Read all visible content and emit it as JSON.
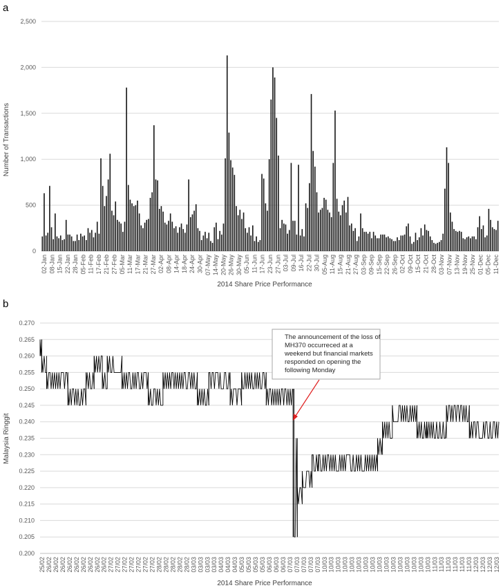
{
  "panels": {
    "a_label": "a",
    "b_label": "b"
  },
  "chart_data": [
    {
      "type": "bar",
      "panel": "a",
      "title": "",
      "xlabel": "2014 Share Price Performance",
      "ylabel": "Number of Transactions",
      "ylim": [
        0,
        2500
      ],
      "yticks": [
        0,
        500,
        1000,
        1500,
        2000,
        2500
      ],
      "ytick_labels": [
        "0",
        "500",
        "1,000",
        "1,500",
        "2,000",
        "2,500"
      ],
      "grid": true,
      "color": "#1a1a1a",
      "x_tick_labels": [
        "02-Jan",
        "08-Jan",
        "15-Jan",
        "22-Jan",
        "28-Jan",
        "05-Feb",
        "11-Feb",
        "17-Feb",
        "21-Feb",
        "27-Feb",
        "05-Mar",
        "11-Mar",
        "17-Mar",
        "21-Mar",
        "27-Mar",
        "02-Apr",
        "08-Apr",
        "14-Apr",
        "18-Apr",
        "24-Apr",
        "30-Apr",
        "07-May",
        "14-May",
        "20-May",
        "26-May",
        "30-May",
        "05-Jun",
        "11-Jun",
        "17-Jun",
        "23-Jun",
        "27-Jun",
        "03-Jul",
        "09-Jul",
        "16-Jul",
        "22-Jul",
        "30-Jul",
        "05-Aug",
        "11-Aug",
        "15-Aug",
        "21-Aug",
        "27-Aug",
        "03-Sep",
        "09-Sep",
        "15-Sep",
        "22-Sep",
        "26-Sep",
        "02-Oct",
        "09-Oct",
        "15-Oct",
        "21-Oct",
        "28-Oct",
        "03-Nov",
        "07-Nov",
        "13-Nov",
        "19-Nov",
        "25-Nov",
        "01-Dec",
        "05-Dec",
        "11-Dec"
      ],
      "values": [
        160,
        630,
        170,
        200,
        710,
        260,
        130,
        410,
        160,
        140,
        170,
        120,
        130,
        340,
        180,
        180,
        160,
        110,
        110,
        180,
        120,
        190,
        160,
        170,
        120,
        250,
        200,
        230,
        150,
        200,
        320,
        190,
        1010,
        710,
        490,
        600,
        780,
        1060,
        440,
        390,
        540,
        340,
        320,
        300,
        210,
        320,
        1780,
        720,
        560,
        520,
        490,
        500,
        550,
        410,
        280,
        250,
        310,
        340,
        350,
        580,
        640,
        1370,
        780,
        770,
        460,
        490,
        430,
        310,
        290,
        330,
        410,
        320,
        250,
        270,
        200,
        260,
        300,
        240,
        200,
        290,
        780,
        370,
        400,
        440,
        510,
        250,
        220,
        120,
        170,
        210,
        140,
        200,
        110,
        90,
        260,
        310,
        130,
        220,
        180,
        300,
        1010,
        2130,
        1290,
        990,
        910,
        830,
        490,
        390,
        450,
        350,
        420,
        250,
        200,
        260,
        170,
        280,
        110,
        160,
        100,
        120,
        840,
        790,
        520,
        440,
        1000,
        1650,
        2000,
        1890,
        1450,
        1040,
        250,
        340,
        300,
        290,
        190,
        230,
        960,
        330,
        330,
        180,
        940,
        170,
        240,
        160,
        520,
        470,
        740,
        1710,
        1090,
        920,
        640,
        420,
        450,
        470,
        580,
        560,
        450,
        420,
        370,
        960,
        1530,
        570,
        430,
        390,
        500,
        550,
        420,
        590,
        280,
        300,
        220,
        250,
        110,
        160,
        410,
        250,
        210,
        210,
        190,
        210,
        140,
        210,
        170,
        140,
        140,
        180,
        180,
        180,
        150,
        160,
        140,
        130,
        110,
        110,
        150,
        120,
        170,
        170,
        180,
        270,
        300,
        160,
        80,
        100,
        200,
        120,
        150,
        250,
        170,
        290,
        230,
        220,
        160,
        120,
        90,
        80,
        90,
        100,
        120,
        190,
        680,
        1130,
        960,
        420,
        320,
        240,
        220,
        210,
        220,
        210,
        140,
        130,
        150,
        160,
        140,
        160,
        160,
        130,
        260,
        380,
        240,
        280,
        150,
        170,
        460,
        340,
        260,
        240,
        230,
        330
      ]
    },
    {
      "type": "line",
      "panel": "b",
      "title": "",
      "xlabel": "2014 Share Price Performance",
      "ylabel": "Malaysia Ringgit",
      "ylim": [
        0.2,
        0.27
      ],
      "yticks": [
        0.2,
        0.205,
        0.21,
        0.215,
        0.22,
        0.225,
        0.23,
        0.235,
        0.24,
        0.245,
        0.25,
        0.255,
        0.26,
        0.265,
        0.27
      ],
      "ytick_labels": [
        "0.200",
        "0.205",
        "0.210",
        "0.215",
        "0.220",
        "0.225",
        "0.230",
        "0.235",
        "0.240",
        "0.245",
        "0.250",
        "0.255",
        "0.260",
        "0.265",
        "0.270"
      ],
      "grid": true,
      "color": "#000000",
      "x_tick_labels": [
        "25/02",
        "26/02",
        "26/02",
        "26/02",
        "26/02",
        "26/02",
        "26/02",
        "26/02",
        "26/02",
        "26/02",
        "27/02",
        "27/02",
        "27/02",
        "27/02",
        "27/02",
        "27/02",
        "27/02",
        "28/02",
        "28/02",
        "28/02",
        "28/02",
        "28/02",
        "03/03",
        "03/03",
        "03/03",
        "03/03",
        "04/03",
        "04/03",
        "04/03",
        "05/03",
        "05/03",
        "05/03",
        "05/03",
        "06/03",
        "06/03",
        "06/03",
        "07/03",
        "07/03",
        "07/03",
        "07/03",
        "07/03",
        "10/03",
        "10/03",
        "10/03",
        "10/03",
        "10/03",
        "10/03",
        "10/03",
        "10/03",
        "10/03",
        "10/03",
        "10/03",
        "10/03",
        "10/03",
        "10/03",
        "10/03",
        "10/03",
        "11/03",
        "11/03",
        "11/03",
        "11/03",
        "11/03",
        "11/03",
        "12/03",
        "12/03",
        "12/03",
        "12/03"
      ],
      "segments": [
        {
          "x": [
            0.0,
            0.5
          ],
          "band": [
            0.26,
            0.265
          ]
        },
        {
          "x": [
            0.5,
            2.0
          ],
          "band": [
            0.255,
            0.26
          ]
        },
        {
          "x": [
            2.0,
            8.5
          ],
          "band": [
            0.25,
            0.255
          ]
        },
        {
          "x": [
            8.5,
            14.0
          ],
          "band": [
            0.245,
            0.25
          ]
        },
        {
          "x": [
            14.0,
            16.5
          ],
          "band": [
            0.25,
            0.255
          ]
        },
        {
          "x": [
            16.5,
            19.0
          ],
          "band": [
            0.255,
            0.26
          ]
        },
        {
          "x": [
            19.0,
            20.5
          ],
          "band": [
            0.25,
            0.255
          ]
        },
        {
          "x": [
            20.5,
            25.0
          ],
          "band": [
            0.255,
            0.26
          ]
        },
        {
          "x": [
            25.0,
            33.0
          ],
          "band": [
            0.25,
            0.255
          ]
        },
        {
          "x": [
            33.0,
            37.5
          ],
          "band": [
            0.245,
            0.25
          ]
        },
        {
          "x": [
            37.5,
            48.0
          ],
          "band": [
            0.25,
            0.255
          ]
        },
        {
          "x": [
            48.0,
            51.5
          ],
          "band": [
            0.245,
            0.25
          ]
        },
        {
          "x": [
            51.5,
            58.0
          ],
          "band": [
            0.25,
            0.255
          ]
        },
        {
          "x": [
            58.0,
            61.5
          ],
          "band": [
            0.245,
            0.25
          ]
        },
        {
          "x": [
            61.5,
            69.0
          ],
          "band": [
            0.25,
            0.255
          ]
        },
        {
          "x": [
            69.0,
            77.0
          ],
          "band": [
            0.245,
            0.25
          ]
        },
        {
          "x": [
            77.5,
            78.5
          ],
          "band": [
            0.205,
            0.235
          ]
        },
        {
          "x": [
            78.5,
            80.0
          ],
          "band": [
            0.215,
            0.22
          ]
        },
        {
          "x": [
            80.0,
            83.0
          ],
          "band": [
            0.22,
            0.225
          ]
        },
        {
          "x": [
            83.0,
            85.0
          ],
          "band": [
            0.225,
            0.23
          ]
        },
        {
          "x": [
            85.0,
            103.0
          ],
          "band": [
            0.225,
            0.23
          ]
        },
        {
          "x": [
            103.0,
            104.5
          ],
          "band": [
            0.23,
            0.235
          ]
        },
        {
          "x": [
            104.5,
            107.5
          ],
          "band": [
            0.235,
            0.24
          ]
        },
        {
          "x": [
            107.5,
            115.0
          ],
          "band": [
            0.24,
            0.245
          ]
        },
        {
          "x": [
            115.0,
            118.0
          ],
          "band": [
            0.235,
            0.24
          ]
        },
        {
          "x": [
            118.0,
            124.0
          ],
          "band": [
            0.235,
            0.24
          ]
        },
        {
          "x": [
            124.0,
            131.0
          ],
          "band": [
            0.24,
            0.245
          ]
        },
        {
          "x": [
            131.0,
            140.0
          ],
          "band": [
            0.235,
            0.24
          ]
        }
      ],
      "annotation": {
        "text_lines": [
          "The announcement of the loss of",
          "MH370 occurreced at a",
          "weekend but financial markets",
          "responded on opening the",
          "following Monday"
        ],
        "arrow_color": "#e02020"
      }
    }
  ]
}
